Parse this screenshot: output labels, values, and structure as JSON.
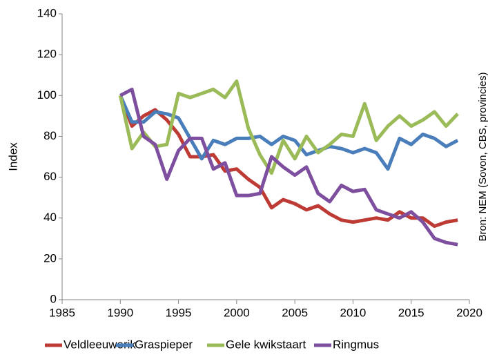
{
  "chart_data": {
    "type": "line",
    "y_label": "Index",
    "annotation": "Bron: NEM (Sovon, CBS, provincies)",
    "x": [
      1990,
      1991,
      1992,
      1993,
      1994,
      1995,
      1996,
      1997,
      1998,
      1999,
      2000,
      2001,
      2002,
      2003,
      2004,
      2005,
      2006,
      2007,
      2008,
      2009,
      2010,
      2011,
      2012,
      2013,
      2014,
      2015,
      2016,
      2017,
      2018,
      2019
    ],
    "series": [
      {
        "name": "Veldleeuwerik",
        "color": "#be3a34",
        "values": [
          100,
          85,
          90,
          93,
          88,
          81,
          70,
          70,
          71,
          63,
          64,
          59,
          55,
          45,
          49,
          47,
          44,
          46,
          42,
          39,
          38,
          39,
          40,
          39,
          43,
          40,
          40,
          36,
          38,
          39
        ]
      },
      {
        "name": "Graspieper",
        "color": "#4a7ebb",
        "values": [
          100,
          87,
          87,
          92,
          91,
          89,
          79,
          69,
          78,
          76,
          79,
          79,
          80,
          76,
          80,
          78,
          71,
          73,
          75,
          74,
          72,
          74,
          72,
          64,
          79,
          76,
          81,
          79,
          75,
          78
        ]
      },
      {
        "name": "Gele kwikstaart",
        "color": "#9bbb59",
        "values": [
          100,
          74,
          82,
          75,
          76,
          101,
          99,
          101,
          103,
          99,
          107,
          84,
          71,
          62,
          78,
          69,
          80,
          72,
          76,
          81,
          80,
          96,
          78,
          85,
          90,
          85,
          88,
          92,
          85,
          91
        ]
      },
      {
        "name": "Ringmus",
        "color": "#7d4f9e",
        "values": [
          100,
          103,
          80,
          76,
          59,
          73,
          79,
          79,
          64,
          67,
          51,
          51,
          52,
          70,
          65,
          61,
          65,
          52,
          48,
          56,
          53,
          54,
          44,
          42,
          40,
          43,
          38,
          30,
          28,
          27
        ]
      }
    ],
    "xlim": [
      1985,
      2020
    ],
    "xticks": [
      1985,
      1990,
      1995,
      2000,
      2005,
      2010,
      2015,
      2020
    ],
    "ylim": [
      0,
      140
    ],
    "yticks": [
      0,
      20,
      40,
      60,
      80,
      100,
      120,
      140
    ],
    "grid": false,
    "legend": "bottom"
  }
}
